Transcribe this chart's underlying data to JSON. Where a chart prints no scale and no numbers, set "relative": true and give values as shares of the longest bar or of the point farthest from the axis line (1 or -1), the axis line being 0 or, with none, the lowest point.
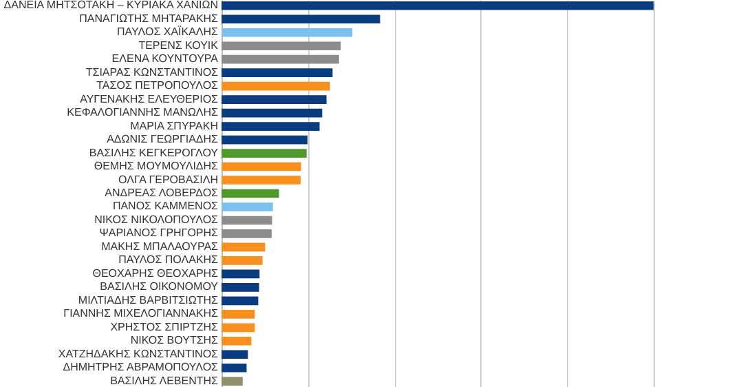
{
  "chart_data": {
    "type": "bar",
    "orientation": "horizontal",
    "relative": true,
    "grid": "x",
    "categories": [
      "ΔΑΝΕΙΑ ΜΗΤΣΟΤΑΚΗ – ΚΥΡΙΑΚΑ ΧΑΝΙΩΝ",
      "ΠΑΝΑΓΙΩΤΗΣ ΜΗΤΑΡΑΚΗΣ",
      "ΠΑΥΛΟΣ ΧΑΪΚΑΛΗΣ",
      "ΤΕΡΕΝΣ ΚΟΥΙΚ",
      "ΕΛΕΝΑ ΚΟΥΝΤΟΥΡΑ",
      "ΤΣΙΑΡΑΣ ΚΩΝΣΤΑΝΤΙΝΟΣ",
      "ΤΑΣΟΣ ΠΕΤΡΟΠΟΥΛΟΣ",
      "ΑΥΓΕΝΑΚΗΣ ΕΛΕΥΘΕΡΙΟΣ",
      "ΚΕΦΑΛΟΓΙΑΝΝΗΣ ΜΑΝΩΛΗΣ",
      "ΜΑΡΙΑ ΣΠΥΡΑΚΗ",
      "ΑΔΩΝΙΣ ΓΕΩΡΓΙΑΔΗΣ",
      "ΒΑΣΙΛΗΣ ΚΕΓΚΕΡΟΓΛΟΥ",
      "ΘΕΜΗΣ ΜΟΥΜΟΥΛΙΔΗΣ",
      "ΟΛΓΑ ΓΕΡΟΒΑΣΙΛΗ",
      "ΑΝΔΡΕΑΣ ΛΟΒΕΡΔΟΣ",
      "ΠΑΝΟΣ ΚΑΜΜΕΝΟΣ",
      "ΝΙΚΟΣ ΝΙΚΟΛΟΠΟΥΛΟΣ",
      "ΨΑΡΙΑΝΟΣ ΓΡΗΓΟΡΗΣ",
      "ΜΑΚΗΣ ΜΠΑΛΑΟΥΡΑΣ",
      "ΠΑΥΛΟΣ ΠΟΛΑΚΗΣ",
      "ΘΕΟΧΑΡΗΣ ΘΕΟΧΑΡΗΣ",
      "ΒΑΣΙΛΗΣ ΟΙΚΟΝΟΜΟΥ",
      "ΜΙΛΤΙΑΔΗΣ ΒΑΡΒΙΤΣΙΩΤΗΣ",
      "ΓΙΑΝΝΗΣ ΜΙΧΕΛΟΓΙΑΝΝΑΚΗΣ",
      "ΧΡΗΣΤΟΣ ΣΠΙΡΤΖΗΣ",
      "ΝΙΚΟΣ ΒΟΥΤΣΗΣ",
      "ΧΑΤΖΗΔΑΚΗΣ ΚΩΝΣΤΑΝΤΙΝΟΣ",
      "ΔΗΜΗΤΡΗΣ ΑΒΡΑΜΟΠΟΥΛΟΣ",
      "ΒΑΣΙΛΗΣ ΛΕΒΕΝΤΗΣ"
    ],
    "values": [
      1,
      0.367,
      0.303,
      0.276,
      0.272,
      0.257,
      0.251,
      0.243,
      0.233,
      0.227,
      0.199,
      0.197,
      0.184,
      0.183,
      0.133,
      0.119,
      0.117,
      0.116,
      0.101,
      0.095,
      0.088,
      0.087,
      0.085,
      0.077,
      0.077,
      0.069,
      0.061,
      0.058,
      0.049
    ],
    "colors": [
      "#0a3d7f",
      "#0a3d7f",
      "#7cc0f0",
      "#8c8c8c",
      "#8c8c8c",
      "#0a3d7f",
      "#f7901e",
      "#0a3d7f",
      "#0a3d7f",
      "#0a3d7f",
      "#0a3d7f",
      "#4e9a2a",
      "#f7901e",
      "#f7901e",
      "#4e9a2a",
      "#7cc0f0",
      "#8c8c8c",
      "#8c8c8c",
      "#f7901e",
      "#f7901e",
      "#0a3d7f",
      "#0a3d7f",
      "#0a3d7f",
      "#f7901e",
      "#f7901e",
      "#f7901e",
      "#0a3d7f",
      "#0a3d7f",
      "#8f8f6a"
    ]
  }
}
